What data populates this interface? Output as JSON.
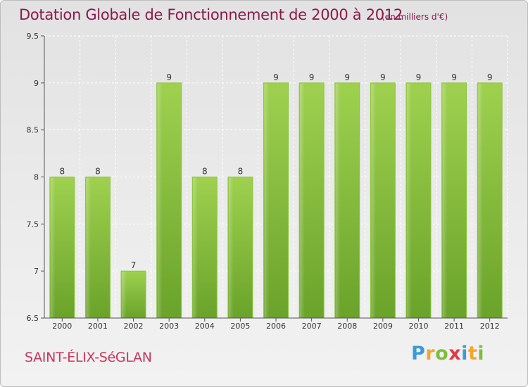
{
  "title": "Dotation Globale de Fonctionnement de 2000 à 2012",
  "subtitle": "(en milliers d'€)",
  "commune": "SAINT-ÉLIX-SéGLAN",
  "logo": "Proxiti",
  "colors": {
    "bar": "#7bb83a",
    "bar_light": "#9ccf4d",
    "title": "#8b1a4a",
    "commune": "#c8365e"
  },
  "chart_data": {
    "type": "bar",
    "title": "Dotation Globale de Fonctionnement de 2000 à 2012",
    "subtitle": "(en milliers d'€)",
    "categories": [
      "2000",
      "2001",
      "2002",
      "2003",
      "2004",
      "2005",
      "2006",
      "2007",
      "2008",
      "2009",
      "2010",
      "2011",
      "2012"
    ],
    "values": [
      8,
      8,
      7,
      9,
      8,
      8,
      9,
      9,
      9,
      9,
      9,
      9,
      9
    ],
    "data_labels": [
      "8",
      "8",
      "7",
      "9",
      "8",
      "8",
      "9",
      "9",
      "9",
      "9",
      "9",
      "9",
      "9"
    ],
    "ylim": [
      6.5,
      9.5
    ],
    "yticks": [
      6.5,
      7,
      7.5,
      8,
      8.5,
      9,
      9.5
    ],
    "ytick_labels": [
      "6.5",
      "7",
      "7.5",
      "8",
      "8.5",
      "9",
      "9.5"
    ],
    "grid": true,
    "xlabel": "",
    "ylabel": ""
  }
}
